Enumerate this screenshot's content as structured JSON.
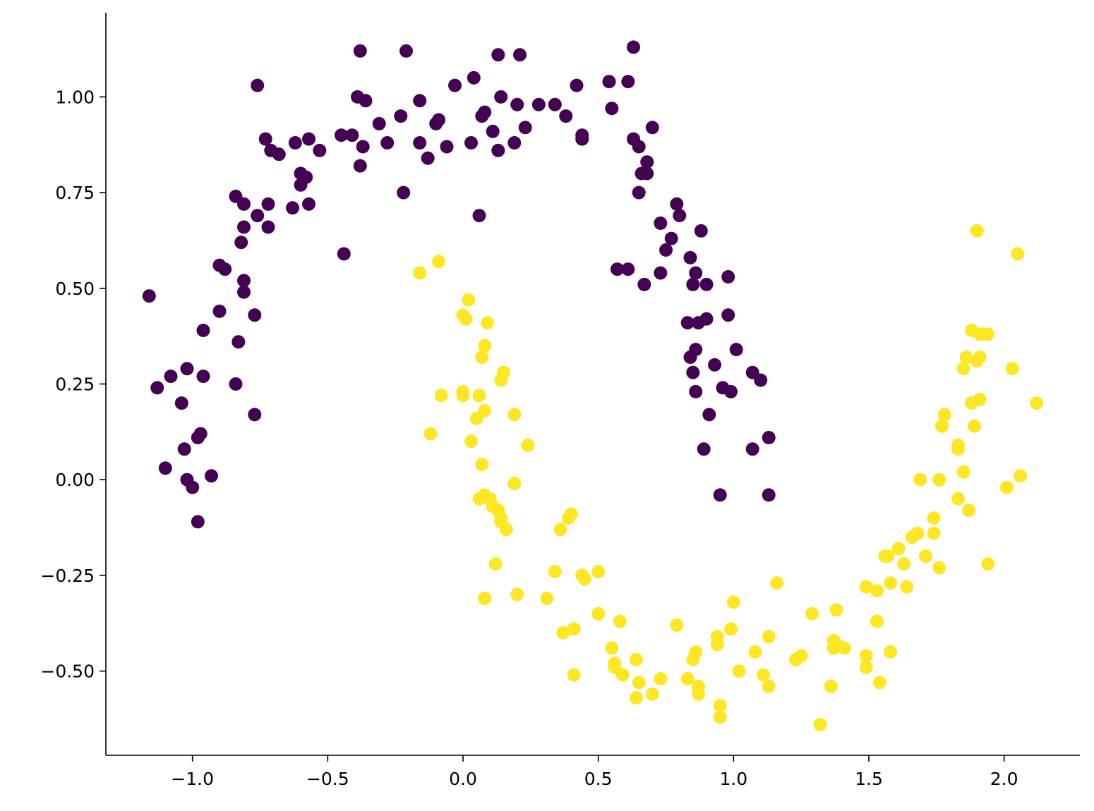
{
  "chart_data": {
    "type": "scatter",
    "title": "",
    "xlabel": "",
    "ylabel": "",
    "xlim": [
      -1.32,
      2.28
    ],
    "ylim": [
      -0.72,
      1.22
    ],
    "grid": false,
    "x_ticks": [
      -1.0,
      -0.5,
      0.0,
      0.5,
      1.0,
      1.5,
      2.0
    ],
    "x_tick_labels": [
      "−1.0",
      "−0.5",
      "0.0",
      "0.5",
      "1.0",
      "1.5",
      "2.0"
    ],
    "y_ticks": [
      -0.5,
      -0.25,
      0.0,
      0.25,
      0.5,
      0.75,
      1.0
    ],
    "y_tick_labels": [
      "−0.50",
      "−0.25",
      "0.00",
      "0.25",
      "0.50",
      "0.75",
      "1.00"
    ],
    "series": [
      {
        "color": "#440154",
        "points": [
          [
            -1.16,
            0.48
          ],
          [
            -1.13,
            0.24
          ],
          [
            -1.08,
            0.27
          ],
          [
            -1.1,
            0.03
          ],
          [
            -1.04,
            0.2
          ],
          [
            -1.03,
            0.08
          ],
          [
            -1.02,
            0.29
          ],
          [
            -1.02,
            0.0
          ],
          [
            -1.0,
            -0.02
          ],
          [
            -0.98,
            0.11
          ],
          [
            -0.97,
            0.12
          ],
          [
            -0.98,
            -0.11
          ],
          [
            -0.96,
            0.27
          ],
          [
            -0.96,
            0.39
          ],
          [
            -0.93,
            0.01
          ],
          [
            -0.9,
            0.44
          ],
          [
            -0.9,
            0.56
          ],
          [
            -0.88,
            0.55
          ],
          [
            -0.84,
            0.25
          ],
          [
            -0.84,
            0.74
          ],
          [
            -0.83,
            0.36
          ],
          [
            -0.82,
            0.62
          ],
          [
            -0.81,
            0.49
          ],
          [
            -0.81,
            0.66
          ],
          [
            -0.81,
            0.72
          ],
          [
            -0.81,
            0.52
          ],
          [
            -0.77,
            0.43
          ],
          [
            -0.77,
            0.17
          ],
          [
            -0.76,
            0.69
          ],
          [
            -0.76,
            1.03
          ],
          [
            -0.73,
            0.89
          ],
          [
            -0.72,
            0.66
          ],
          [
            -0.72,
            0.72
          ],
          [
            -0.71,
            0.86
          ],
          [
            -0.68,
            0.85
          ],
          [
            -0.63,
            0.71
          ],
          [
            -0.62,
            0.88
          ],
          [
            -0.6,
            0.77
          ],
          [
            -0.6,
            0.8
          ],
          [
            -0.58,
            0.79
          ],
          [
            -0.57,
            0.72
          ],
          [
            -0.57,
            0.89
          ],
          [
            -0.53,
            0.86
          ],
          [
            -0.45,
            0.9
          ],
          [
            -0.44,
            0.59
          ],
          [
            -0.41,
            0.9
          ],
          [
            -0.39,
            1.0
          ],
          [
            -0.38,
            1.12
          ],
          [
            -0.38,
            0.82
          ],
          [
            -0.37,
            0.87
          ],
          [
            -0.36,
            0.99
          ],
          [
            -0.31,
            0.93
          ],
          [
            -0.28,
            0.88
          ],
          [
            -0.23,
            0.95
          ],
          [
            -0.22,
            0.75
          ],
          [
            -0.21,
            1.12
          ],
          [
            -0.16,
            0.99
          ],
          [
            -0.16,
            0.88
          ],
          [
            -0.13,
            0.84
          ],
          [
            -0.1,
            0.93
          ],
          [
            -0.09,
            0.94
          ],
          [
            -0.06,
            0.87
          ],
          [
            -0.03,
            1.03
          ],
          [
            0.03,
            0.88
          ],
          [
            0.04,
            1.05
          ],
          [
            0.06,
            0.69
          ],
          [
            0.07,
            0.95
          ],
          [
            0.08,
            0.96
          ],
          [
            0.11,
            0.91
          ],
          [
            0.13,
            1.11
          ],
          [
            0.13,
            0.86
          ],
          [
            0.14,
            1.0
          ],
          [
            0.19,
            0.88
          ],
          [
            0.21,
            1.11
          ],
          [
            0.2,
            0.98
          ],
          [
            0.23,
            0.92
          ],
          [
            0.28,
            0.98
          ],
          [
            0.34,
            0.98
          ],
          [
            0.38,
            0.95
          ],
          [
            0.42,
            1.03
          ],
          [
            0.44,
            0.89
          ],
          [
            0.44,
            0.9
          ],
          [
            0.54,
            1.04
          ],
          [
            0.55,
            0.97
          ],
          [
            0.57,
            0.55
          ],
          [
            0.61,
            0.55
          ],
          [
            0.61,
            1.04
          ],
          [
            0.63,
            1.13
          ],
          [
            0.63,
            0.89
          ],
          [
            0.65,
            0.87
          ],
          [
            0.65,
            0.75
          ],
          [
            0.66,
            0.8
          ],
          [
            0.67,
            0.51
          ],
          [
            0.68,
            0.8
          ],
          [
            0.68,
            0.83
          ],
          [
            0.7,
            0.92
          ],
          [
            0.73,
            0.67
          ],
          [
            0.73,
            0.54
          ],
          [
            0.75,
            0.6
          ],
          [
            0.77,
            0.63
          ],
          [
            0.79,
            0.72
          ],
          [
            0.8,
            0.69
          ],
          [
            0.83,
            0.41
          ],
          [
            0.84,
            0.32
          ],
          [
            0.84,
            0.58
          ],
          [
            0.85,
            0.28
          ],
          [
            0.85,
            0.51
          ],
          [
            0.86,
            0.23
          ],
          [
            0.86,
            0.34
          ],
          [
            0.86,
            0.54
          ],
          [
            0.87,
            0.41
          ],
          [
            0.88,
            0.65
          ],
          [
            0.89,
            0.08
          ],
          [
            0.9,
            0.42
          ],
          [
            0.9,
            0.51
          ],
          [
            0.91,
            0.17
          ],
          [
            0.93,
            0.3
          ],
          [
            0.95,
            -0.04
          ],
          [
            0.96,
            0.24
          ],
          [
            0.98,
            0.43
          ],
          [
            0.98,
            0.53
          ],
          [
            0.99,
            0.23
          ],
          [
            1.01,
            0.34
          ],
          [
            1.07,
            0.28
          ],
          [
            1.07,
            0.08
          ],
          [
            1.1,
            0.26
          ],
          [
            1.13,
            0.11
          ],
          [
            1.13,
            -0.04
          ]
        ]
      },
      {
        "color": "#fde725",
        "points": [
          [
            -0.16,
            0.54
          ],
          [
            -0.12,
            0.12
          ],
          [
            -0.09,
            0.57
          ],
          [
            -0.08,
            0.22
          ],
          [
            0.0,
            0.43
          ],
          [
            0.0,
            0.23
          ],
          [
            0.0,
            0.22
          ],
          [
            0.01,
            0.42
          ],
          [
            0.02,
            0.47
          ],
          [
            0.03,
            0.1
          ],
          [
            0.05,
            0.16
          ],
          [
            0.06,
            0.22
          ],
          [
            0.06,
            -0.05
          ],
          [
            0.07,
            0.04
          ],
          [
            0.07,
            0.32
          ],
          [
            0.08,
            0.35
          ],
          [
            0.08,
            -0.04
          ],
          [
            0.08,
            0.18
          ],
          [
            0.08,
            -0.31
          ],
          [
            0.09,
            0.41
          ],
          [
            0.1,
            -0.05
          ],
          [
            0.11,
            -0.07
          ],
          [
            0.12,
            -0.22
          ],
          [
            0.13,
            -0.08
          ],
          [
            0.14,
            -0.1
          ],
          [
            0.14,
            -0.11
          ],
          [
            0.14,
            0.26
          ],
          [
            0.15,
            0.28
          ],
          [
            0.16,
            -0.13
          ],
          [
            0.19,
            0.17
          ],
          [
            0.19,
            -0.01
          ],
          [
            0.2,
            -0.3
          ],
          [
            0.24,
            0.09
          ],
          [
            0.31,
            -0.31
          ],
          [
            0.34,
            -0.24
          ],
          [
            0.36,
            -0.13
          ],
          [
            0.37,
            -0.4
          ],
          [
            0.39,
            -0.1
          ],
          [
            0.4,
            -0.09
          ],
          [
            0.41,
            -0.51
          ],
          [
            0.41,
            -0.39
          ],
          [
            0.44,
            -0.25
          ],
          [
            0.45,
            -0.26
          ],
          [
            0.5,
            -0.35
          ],
          [
            0.5,
            -0.24
          ],
          [
            0.55,
            -0.44
          ],
          [
            0.56,
            -0.49
          ],
          [
            0.56,
            -0.48
          ],
          [
            0.58,
            -0.37
          ],
          [
            0.59,
            -0.51
          ],
          [
            0.64,
            -0.57
          ],
          [
            0.64,
            -0.47
          ],
          [
            0.65,
            -0.53
          ],
          [
            0.7,
            -0.56
          ],
          [
            0.73,
            -0.52
          ],
          [
            0.79,
            -0.38
          ],
          [
            0.83,
            -0.52
          ],
          [
            0.85,
            -0.47
          ],
          [
            0.86,
            -0.45
          ],
          [
            0.87,
            -0.54
          ],
          [
            0.87,
            -0.56
          ],
          [
            0.94,
            -0.43
          ],
          [
            0.94,
            -0.41
          ],
          [
            0.95,
            -0.59
          ],
          [
            0.95,
            -0.62
          ],
          [
            0.99,
            -0.39
          ],
          [
            1.0,
            -0.32
          ],
          [
            1.02,
            -0.5
          ],
          [
            1.08,
            -0.45
          ],
          [
            1.11,
            -0.51
          ],
          [
            1.13,
            -0.41
          ],
          [
            1.13,
            -0.54
          ],
          [
            1.16,
            -0.27
          ],
          [
            1.23,
            -0.47
          ],
          [
            1.25,
            -0.46
          ],
          [
            1.29,
            -0.35
          ],
          [
            1.32,
            -0.64
          ],
          [
            1.36,
            -0.54
          ],
          [
            1.37,
            -0.42
          ],
          [
            1.37,
            -0.44
          ],
          [
            1.38,
            -0.34
          ],
          [
            1.38,
            -0.43
          ],
          [
            1.41,
            -0.44
          ],
          [
            1.49,
            -0.28
          ],
          [
            1.49,
            -0.46
          ],
          [
            1.49,
            -0.49
          ],
          [
            1.53,
            -0.29
          ],
          [
            1.53,
            -0.37
          ],
          [
            1.54,
            -0.53
          ],
          [
            1.56,
            -0.2
          ],
          [
            1.57,
            -0.2
          ],
          [
            1.58,
            -0.27
          ],
          [
            1.58,
            -0.45
          ],
          [
            1.61,
            -0.18
          ],
          [
            1.63,
            -0.22
          ],
          [
            1.64,
            -0.28
          ],
          [
            1.66,
            -0.15
          ],
          [
            1.68,
            -0.14
          ],
          [
            1.69,
            0.0
          ],
          [
            1.71,
            -0.2
          ],
          [
            1.74,
            -0.1
          ],
          [
            1.74,
            -0.14
          ],
          [
            1.76,
            -0.23
          ],
          [
            1.76,
            0.0
          ],
          [
            1.77,
            0.14
          ],
          [
            1.78,
            0.17
          ],
          [
            1.83,
            -0.05
          ],
          [
            1.83,
            0.08
          ],
          [
            1.83,
            0.09
          ],
          [
            1.85,
            0.02
          ],
          [
            1.85,
            0.29
          ],
          [
            1.86,
            0.32
          ],
          [
            1.87,
            -0.08
          ],
          [
            1.88,
            0.2
          ],
          [
            1.88,
            0.39
          ],
          [
            1.89,
            0.14
          ],
          [
            1.9,
            0.31
          ],
          [
            1.91,
            0.21
          ],
          [
            1.91,
            0.32
          ],
          [
            1.91,
            0.38
          ],
          [
            1.92,
            0.38
          ],
          [
            1.94,
            0.38
          ],
          [
            1.94,
            -0.22
          ],
          [
            1.9,
            0.65
          ],
          [
            2.01,
            -0.02
          ],
          [
            2.03,
            0.29
          ],
          [
            2.05,
            0.59
          ],
          [
            2.06,
            0.01
          ],
          [
            2.12,
            0.2
          ]
        ]
      }
    ]
  }
}
